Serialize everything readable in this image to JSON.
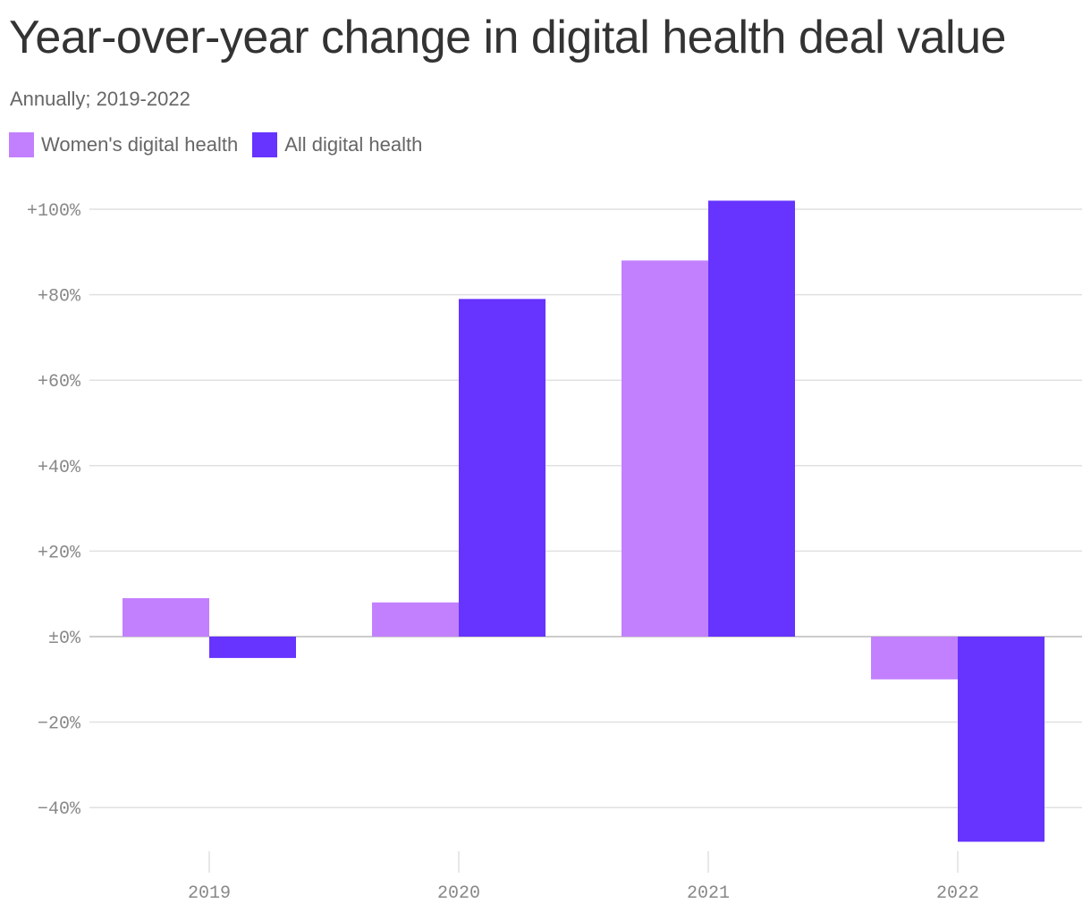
{
  "colors": {
    "women": "#c280ff",
    "all": "#6633ff",
    "grid": "#e0e0e0",
    "zero": "#cccccc"
  },
  "chart_data": {
    "type": "bar",
    "title": "Year-over-year change in digital health deal value",
    "subtitle": "Annually; 2019-2022",
    "categories": [
      "2019",
      "2020",
      "2021",
      "2022"
    ],
    "series": [
      {
        "name": "Women's digital health",
        "values": [
          9,
          8,
          88,
          -10
        ]
      },
      {
        "name": "All digital health",
        "values": [
          -5,
          79,
          102,
          -48
        ]
      }
    ],
    "y_ticks": [
      100,
      80,
      60,
      40,
      20,
      0,
      -20,
      -40
    ],
    "y_tick_labels": [
      "+100%",
      "+80%",
      "+60%",
      "+40%",
      "+20%",
      "±0%",
      "−20%",
      "−40%"
    ],
    "ylim": [
      -50,
      102
    ],
    "grid": true,
    "legend_position": "top-left"
  }
}
